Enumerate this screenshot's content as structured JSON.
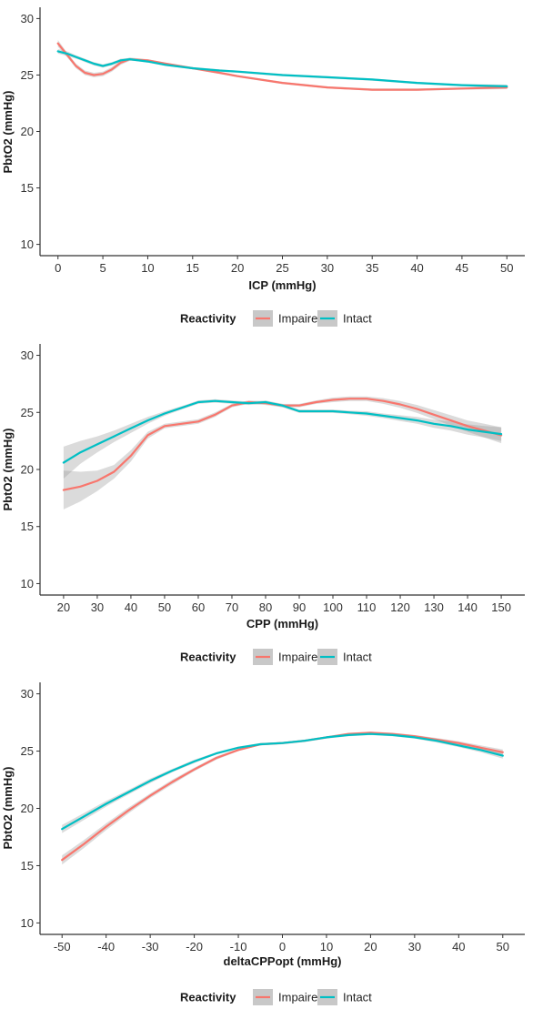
{
  "chart_data": [
    {
      "type": "line",
      "xlabel": "ICP (mmHg)",
      "ylabel": "PbtO2 (mmHg)",
      "xlim": [
        -2,
        52
      ],
      "ylim": [
        9,
        31
      ],
      "xticks": [
        0,
        5,
        10,
        15,
        20,
        25,
        30,
        35,
        40,
        45,
        50
      ],
      "yticks": [
        10,
        15,
        20,
        25,
        30
      ],
      "grid": false,
      "legend": {
        "title": "Reactivity",
        "position": "bottom"
      },
      "series": [
        {
          "name": "Impaired",
          "color": "#F8766D",
          "x": [
            0,
            1,
            2,
            3,
            4,
            5,
            6,
            7,
            8,
            10,
            12,
            15,
            18,
            20,
            25,
            30,
            35,
            40,
            45,
            50
          ],
          "y": [
            27.8,
            26.8,
            25.8,
            25.2,
            25.0,
            25.1,
            25.5,
            26.1,
            26.4,
            26.3,
            26.0,
            25.6,
            25.2,
            24.9,
            24.3,
            23.9,
            23.7,
            23.7,
            23.8,
            23.9
          ],
          "ci_halfwidth": [
            0.3,
            0.2,
            0.2,
            0.2,
            0.2,
            0.2,
            0.2,
            0.2,
            0.15,
            0.1,
            0.1,
            0.1,
            0.1,
            0.1,
            0.1,
            0.1,
            0.1,
            0.1,
            0.1,
            0.15
          ]
        },
        {
          "name": "Intact",
          "color": "#00BFC4",
          "x": [
            0,
            1,
            2,
            3,
            4,
            5,
            6,
            7,
            8,
            10,
            12,
            15,
            18,
            20,
            25,
            30,
            35,
            40,
            45,
            50
          ],
          "y": [
            27.1,
            26.9,
            26.6,
            26.3,
            26.0,
            25.8,
            26.0,
            26.3,
            26.4,
            26.2,
            25.9,
            25.6,
            25.4,
            25.3,
            25.0,
            24.8,
            24.6,
            24.3,
            24.1,
            24.0
          ],
          "ci_halfwidth": [
            0.2,
            0.2,
            0.15,
            0.15,
            0.15,
            0.15,
            0.15,
            0.15,
            0.1,
            0.1,
            0.1,
            0.1,
            0.1,
            0.1,
            0.1,
            0.1,
            0.1,
            0.1,
            0.1,
            0.15
          ]
        }
      ]
    },
    {
      "type": "line",
      "xlabel": "CPP (mmHg)",
      "ylabel": "PbtO2 (mmHg)",
      "xlim": [
        13,
        157
      ],
      "ylim": [
        9,
        31
      ],
      "xticks": [
        20,
        30,
        40,
        50,
        60,
        70,
        80,
        90,
        100,
        110,
        120,
        130,
        140,
        150
      ],
      "yticks": [
        10,
        15,
        20,
        25,
        30
      ],
      "grid": false,
      "legend": {
        "title": "Reactivity",
        "position": "bottom"
      },
      "series": [
        {
          "name": "Impaired",
          "color": "#F8766D",
          "x": [
            20,
            25,
            30,
            35,
            40,
            45,
            50,
            55,
            60,
            65,
            70,
            75,
            80,
            85,
            90,
            95,
            100,
            105,
            110,
            115,
            120,
            125,
            130,
            135,
            140,
            145,
            150
          ],
          "y": [
            18.2,
            18.5,
            19.0,
            19.8,
            21.2,
            23.0,
            23.8,
            24.0,
            24.2,
            24.8,
            25.6,
            25.9,
            25.8,
            25.6,
            25.6,
            25.9,
            26.1,
            26.2,
            26.2,
            26.0,
            25.7,
            25.3,
            24.8,
            24.3,
            23.8,
            23.4,
            23.0
          ],
          "ci_halfwidth": [
            1.7,
            1.3,
            0.9,
            0.6,
            0.5,
            0.3,
            0.2,
            0.2,
            0.2,
            0.2,
            0.15,
            0.15,
            0.15,
            0.15,
            0.15,
            0.15,
            0.2,
            0.2,
            0.2,
            0.25,
            0.3,
            0.35,
            0.4,
            0.45,
            0.5,
            0.6,
            0.7
          ]
        },
        {
          "name": "Intact",
          "color": "#00BFC4",
          "x": [
            20,
            25,
            30,
            35,
            40,
            45,
            50,
            55,
            60,
            65,
            70,
            75,
            80,
            85,
            90,
            95,
            100,
            105,
            110,
            115,
            120,
            125,
            130,
            135,
            140,
            145,
            150
          ],
          "y": [
            20.6,
            21.5,
            22.2,
            22.9,
            23.6,
            24.3,
            24.9,
            25.4,
            25.9,
            26.0,
            25.9,
            25.8,
            25.9,
            25.6,
            25.1,
            25.1,
            25.1,
            25.0,
            24.9,
            24.7,
            24.5,
            24.3,
            24.0,
            23.8,
            23.5,
            23.3,
            23.1
          ],
          "ci_halfwidth": [
            1.4,
            1.0,
            0.7,
            0.5,
            0.4,
            0.3,
            0.2,
            0.15,
            0.15,
            0.15,
            0.15,
            0.15,
            0.15,
            0.15,
            0.15,
            0.15,
            0.15,
            0.15,
            0.2,
            0.2,
            0.25,
            0.3,
            0.35,
            0.4,
            0.45,
            0.5,
            0.6
          ]
        }
      ]
    },
    {
      "type": "line",
      "xlabel": "deltaCPPopt (mmHg)",
      "ylabel": "PbtO2 (mmHg)",
      "xlim": [
        -55,
        55
      ],
      "ylim": [
        9,
        31
      ],
      "xticks": [
        -50,
        -40,
        -30,
        -20,
        -10,
        0,
        10,
        20,
        30,
        40,
        50
      ],
      "yticks": [
        10,
        15,
        20,
        25,
        30
      ],
      "grid": false,
      "legend": {
        "title": "Reactivity",
        "position": "bottom"
      },
      "series": [
        {
          "name": "Impaired",
          "color": "#F8766D",
          "x": [
            -50,
            -45,
            -40,
            -35,
            -30,
            -25,
            -20,
            -15,
            -10,
            -5,
            0,
            5,
            10,
            15,
            20,
            25,
            30,
            35,
            40,
            45,
            50
          ],
          "y": [
            15.5,
            16.9,
            18.4,
            19.8,
            21.1,
            22.3,
            23.4,
            24.4,
            25.1,
            25.6,
            25.7,
            25.9,
            26.2,
            26.5,
            26.6,
            26.5,
            26.3,
            26.0,
            25.7,
            25.3,
            24.9
          ],
          "ci_halfwidth": [
            0.4,
            0.35,
            0.3,
            0.25,
            0.2,
            0.2,
            0.15,
            0.15,
            0.1,
            0.1,
            0.1,
            0.1,
            0.1,
            0.1,
            0.1,
            0.1,
            0.1,
            0.15,
            0.15,
            0.2,
            0.25
          ]
        },
        {
          "name": "Intact",
          "color": "#00BFC4",
          "x": [
            -50,
            -45,
            -40,
            -35,
            -30,
            -25,
            -20,
            -15,
            -10,
            -5,
            0,
            5,
            10,
            15,
            20,
            25,
            30,
            35,
            40,
            45,
            50
          ],
          "y": [
            18.2,
            19.3,
            20.4,
            21.4,
            22.4,
            23.3,
            24.1,
            24.8,
            25.3,
            25.6,
            25.7,
            25.9,
            26.2,
            26.4,
            26.5,
            26.4,
            26.2,
            25.9,
            25.5,
            25.1,
            24.6
          ],
          "ci_halfwidth": [
            0.35,
            0.3,
            0.25,
            0.2,
            0.2,
            0.15,
            0.15,
            0.1,
            0.1,
            0.1,
            0.1,
            0.1,
            0.1,
            0.1,
            0.1,
            0.1,
            0.1,
            0.15,
            0.15,
            0.2,
            0.25
          ]
        }
      ]
    }
  ]
}
